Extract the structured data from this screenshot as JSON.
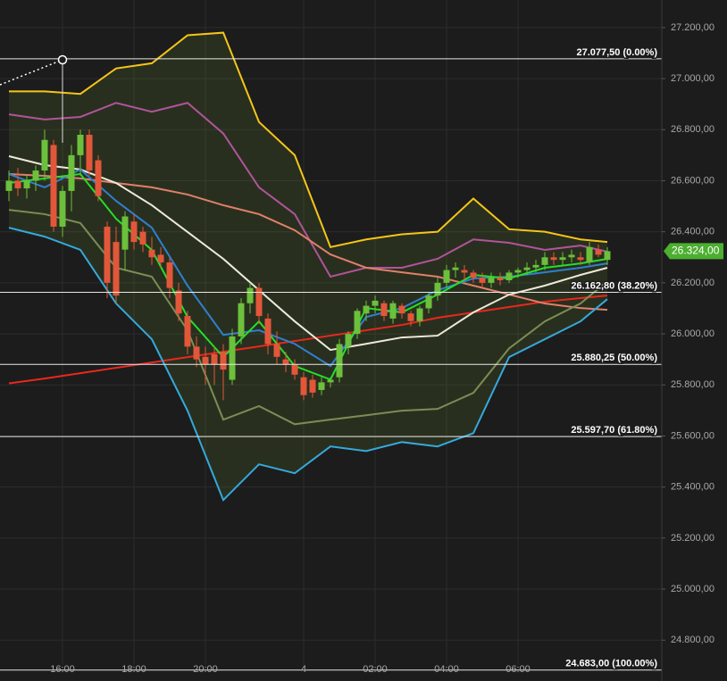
{
  "chart_data": {
    "type": "candlestick",
    "categories": [
      null,
      null,
      null,
      null,
      null,
      null,
      "16:00",
      null,
      null,
      null,
      null,
      null,
      null,
      null,
      "18:00",
      null,
      null,
      null,
      null,
      null,
      null,
      null,
      "20:00",
      null,
      null,
      null,
      null,
      null,
      null,
      null,
      null,
      null,
      null,
      "4",
      null,
      null,
      null,
      null,
      null,
      null,
      null,
      "02:00",
      null,
      null,
      null,
      null,
      null,
      null,
      null,
      "04:00",
      null,
      null,
      null,
      null,
      null,
      null,
      null,
      "06:00",
      null,
      null,
      null,
      null,
      null,
      null,
      null,
      null,
      null,
      null
    ],
    "open": [
      26560,
      26600,
      26570,
      26600,
      26640,
      26740,
      26420,
      26560,
      26700,
      26780,
      26680,
      26420,
      26360,
      26330,
      26440,
      26400,
      26330,
      26310,
      26280,
      26170,
      26070,
      25950,
      25910,
      25920,
      25930,
      25820,
      25990,
      26120,
      26180,
      26060,
      25960,
      25900,
      25880,
      25830,
      25820,
      25780,
      25810,
      25830,
      25950,
      26000,
      26080,
      26110,
      26120,
      26060,
      26110,
      26080,
      26050,
      26100,
      26150,
      26200,
      26250,
      26250,
      26240,
      26220,
      26200,
      26220,
      26210,
      26240,
      26250,
      26260,
      26270,
      26300,
      26290,
      26300,
      26300,
      26280,
      26330,
      26290
    ],
    "high": [
      26640,
      26650,
      26620,
      26660,
      26800,
      26760,
      26580,
      26740,
      26800,
      26800,
      26700,
      26440,
      26420,
      26480,
      26470,
      26420,
      26380,
      26340,
      26300,
      26200,
      26090,
      25990,
      25950,
      25950,
      25960,
      26020,
      26140,
      26200,
      26200,
      26080,
      26010,
      25930,
      25900,
      25850,
      25840,
      25830,
      25830,
      25980,
      26010,
      26100,
      26130,
      26150,
      26130,
      26130,
      26120,
      26090,
      26110,
      26160,
      26220,
      26270,
      26280,
      26270,
      26250,
      26240,
      26240,
      26240,
      26250,
      26260,
      26280,
      26290,
      26320,
      26320,
      26320,
      26330,
      26320,
      26360,
      26350,
      26340
    ],
    "low": [
      26520,
      26540,
      26530,
      26560,
      26600,
      26400,
      26380,
      26480,
      26620,
      26620,
      26520,
      26140,
      26120,
      26250,
      26330,
      26320,
      26270,
      26260,
      26140,
      26050,
      25920,
      25870,
      25800,
      25800,
      25740,
      25800,
      25960,
      26080,
      26040,
      25920,
      25880,
      25850,
      25820,
      25740,
      25750,
      25760,
      25790,
      25810,
      25920,
      25980,
      26050,
      26080,
      26050,
      26040,
      26060,
      26030,
      26030,
      26080,
      26130,
      26180,
      26220,
      26210,
      26200,
      26180,
      26180,
      26190,
      26200,
      26220,
      26230,
      26240,
      26250,
      26270,
      26270,
      26280,
      26270,
      26270,
      26300,
      26270
    ],
    "close": [
      26600,
      26570,
      26600,
      26640,
      26760,
      26420,
      26560,
      26700,
      26780,
      26640,
      26540,
      26200,
      26150,
      26460,
      26360,
      26350,
      26300,
      26280,
      26180,
      26080,
      25950,
      25900,
      25880,
      25880,
      25860,
      25990,
      26120,
      26180,
      26070,
      25960,
      25910,
      25880,
      25840,
      25760,
      25770,
      25810,
      25820,
      25960,
      26000,
      26090,
      26110,
      26130,
      26070,
      26120,
      26080,
      26050,
      26100,
      26150,
      26200,
      26250,
      26260,
      26240,
      26220,
      26200,
      26220,
      26210,
      26240,
      26250,
      26260,
      26270,
      26300,
      26290,
      26300,
      26310,
      26290,
      26340,
      26310,
      26324
    ],
    "up_color": "#6cc03c",
    "down_color": "#e2573a",
    "band_fill_color": "rgba(90,120,40,0.22)",
    "series": [
      {
        "color": "#f5c518",
        "x": [
          0,
          4,
          8,
          12,
          16,
          20,
          24,
          28,
          32,
          36,
          40,
          44,
          48,
          52,
          56,
          60,
          64,
          67
        ],
        "values": [
          26950,
          26950,
          26940,
          27040,
          27060,
          27170,
          27180,
          26830,
          26700,
          26340,
          26370,
          26390,
          26400,
          26530,
          26410,
          26400,
          26370,
          26360
        ]
      },
      {
        "color": "#b0549b",
        "x": [
          0,
          4,
          8,
          12,
          16,
          20,
          24,
          28,
          32,
          36,
          40,
          44,
          48,
          52,
          56,
          60,
          64,
          67
        ],
        "values": [
          26860,
          26840,
          26850,
          26905,
          26870,
          26905,
          26785,
          26574,
          26469,
          26224,
          26259,
          26259,
          26294,
          26370,
          26357,
          26329,
          26346,
          26322
        ]
      },
      {
        "color": "#e8281e",
        "x": [
          0,
          4,
          8,
          12,
          16,
          20,
          24,
          28,
          32,
          36,
          40,
          44,
          48,
          52,
          56,
          60,
          64,
          67
        ],
        "values": [
          25806,
          25825,
          25846,
          25867,
          25888,
          25909,
          25930,
          25951,
          25972,
          25993,
          26014,
          26035,
          26063,
          26084,
          26105,
          26126,
          26140,
          26150
        ]
      },
      {
        "color": "#e0806a",
        "x": [
          0,
          4,
          8,
          12,
          16,
          20,
          24,
          28,
          32,
          36,
          40,
          44,
          48,
          52,
          56,
          60,
          64,
          67
        ],
        "values": [
          26626,
          26619,
          26609,
          26591,
          26574,
          26546,
          26504,
          26469,
          26406,
          26311,
          26259,
          26241,
          26224,
          26189,
          26154,
          26119,
          26101,
          26094
        ]
      },
      {
        "color": "#ecead8",
        "x": [
          0,
          4,
          8,
          12,
          16,
          20,
          24,
          28,
          32,
          36,
          40,
          44,
          48,
          52,
          56,
          60,
          64,
          67
        ],
        "values": [
          26696,
          26661,
          26644,
          26591,
          26504,
          26399,
          26294,
          26171,
          26049,
          25937,
          25961,
          25986,
          25993,
          26084,
          26154,
          26189,
          26231,
          26259
        ]
      },
      {
        "color": "#2f7fd0",
        "x": [
          0,
          4,
          8,
          12,
          16,
          20,
          24,
          28,
          32,
          36,
          40,
          44,
          48,
          52,
          56,
          60,
          64,
          67
        ],
        "values": [
          26626,
          26574,
          26644,
          26521,
          26416,
          26189,
          25996,
          26014,
          25961,
          25874,
          26066,
          26101,
          26171,
          26217,
          26224,
          26241,
          26259,
          26276
        ]
      },
      {
        "color": "#22e02a",
        "x": [
          0,
          4,
          8,
          12,
          16,
          20,
          24,
          28,
          32,
          36,
          40,
          44,
          48,
          52,
          56,
          60,
          64,
          67
        ],
        "values": [
          26591,
          26609,
          26626,
          26451,
          26329,
          26066,
          25909,
          26049,
          25874,
          25821,
          26101,
          26084,
          26154,
          26231,
          26217,
          26259,
          26276,
          26294
        ]
      },
      {
        "color": "#7b8d56",
        "x": [
          0,
          4,
          8,
          12,
          16,
          20,
          24,
          28,
          32,
          36,
          40,
          44,
          48,
          52,
          56,
          60,
          64,
          67
        ],
        "values": [
          26486,
          26469,
          26434,
          26259,
          26224,
          26014,
          25664,
          25717,
          25646,
          25664,
          25681,
          25699,
          25706,
          25769,
          25943,
          26049,
          26119,
          26206
        ]
      },
      {
        "color": "#35a9dc",
        "x": [
          0,
          4,
          8,
          12,
          16,
          20,
          24,
          28,
          32,
          36,
          40,
          44,
          48,
          52,
          56,
          60,
          64,
          67
        ],
        "values": [
          26416,
          26381,
          26329,
          26119,
          25979,
          25699,
          25349,
          25489,
          25454,
          25559,
          25541,
          25576,
          25559,
          25611,
          25909,
          25979,
          26049,
          26136
        ]
      }
    ],
    "levels": [
      {
        "value": 27077.5,
        "label": "27.077,50 (0.00%)"
      },
      {
        "value": 26162.8,
        "label": "26.162,80 (38.20%)"
      },
      {
        "value": 25880.25,
        "label": "25.880,25 (50.00%)"
      },
      {
        "value": 25597.7,
        "label": "25.597,70 (61.80%)"
      },
      {
        "value": 24683,
        "label": "24.683,00 (100.00%)"
      }
    ],
    "last_price": {
      "value": 26324,
      "label": "26.324,00",
      "color": "#4caf30"
    },
    "ylim": [
      24640,
      27308
    ],
    "yticks": [
      {
        "value": 27200,
        "label": "27.200,00"
      },
      {
        "value": 27000,
        "label": "27.000,00"
      },
      {
        "value": 26800,
        "label": "26.800,00"
      },
      {
        "value": 26600,
        "label": "26.600,00"
      },
      {
        "value": 26400,
        "label": "26.400,00"
      },
      {
        "value": 26200,
        "label": "26.200,00"
      },
      {
        "value": 26000,
        "label": "26.000,00"
      },
      {
        "value": 25800,
        "label": "25.800,00"
      },
      {
        "value": 25600,
        "label": "25.600,00"
      },
      {
        "value": 25400,
        "label": "25.400,00"
      },
      {
        "value": 25200,
        "label": "25.200,00"
      },
      {
        "value": 25000,
        "label": "25.000,00"
      },
      {
        "value": 24800,
        "label": "24.800,00"
      }
    ],
    "grid": true
  }
}
